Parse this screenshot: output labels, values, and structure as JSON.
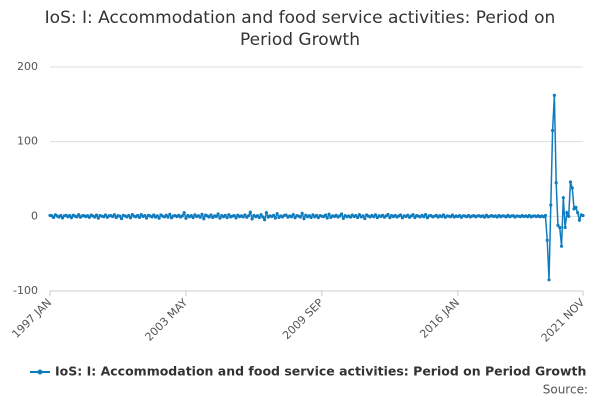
{
  "chart_data": {
    "type": "line",
    "title": "IoS: I: Accommodation and food service activities: Period on Period Growth",
    "source": "Source:",
    "categories": [
      "1997 JAN",
      null,
      null,
      null,
      null,
      null,
      null,
      null,
      null,
      null,
      null,
      null,
      null,
      null,
      null,
      null,
      null,
      null,
      null,
      null,
      null,
      null,
      null,
      null,
      null,
      null,
      null,
      null,
      null,
      null,
      null,
      null,
      null,
      null,
      null,
      null,
      null,
      null,
      null,
      null,
      null,
      null,
      null,
      null,
      null,
      null,
      null,
      null,
      null,
      null,
      null,
      null,
      null,
      null,
      null,
      null,
      null,
      null,
      null,
      null,
      null,
      null,
      null,
      null,
      null,
      null,
      null,
      null,
      null,
      null,
      null,
      null,
      null,
      null,
      null,
      null,
      "2003 MAY",
      null,
      null,
      null,
      null,
      null,
      null,
      null,
      null,
      null,
      null,
      null,
      null,
      null,
      null,
      null,
      null,
      null,
      null,
      null,
      null,
      null,
      null,
      null,
      null,
      null,
      null,
      null,
      null,
      null,
      null,
      null,
      null,
      null,
      null,
      null,
      null,
      null,
      null,
      null,
      null,
      null,
      null,
      null,
      null,
      null,
      null,
      null,
      null,
      null,
      null,
      null,
      null,
      null,
      null,
      null,
      null,
      null,
      null,
      null,
      null,
      null,
      null,
      null,
      null,
      null,
      null,
      null,
      null,
      null,
      null,
      null,
      null,
      null,
      null,
      null,
      "2009 SEP",
      null,
      null,
      null,
      null,
      null,
      null,
      null,
      null,
      null,
      null,
      null,
      null,
      null,
      null,
      null,
      null,
      null,
      null,
      null,
      null,
      null,
      null,
      null,
      null,
      null,
      null,
      null,
      null,
      null,
      null,
      null,
      null,
      null,
      null,
      null,
      null,
      null,
      null,
      null,
      null,
      null,
      null,
      null,
      null,
      null,
      null,
      null,
      null,
      null,
      null,
      null,
      null,
      null,
      null,
      null,
      null,
      null,
      null,
      null,
      null,
      null,
      null,
      null,
      null,
      null,
      null,
      null,
      null,
      null,
      null,
      null,
      null,
      null,
      null,
      null,
      "2016 JAN",
      null,
      null,
      null,
      null,
      null,
      null,
      null,
      null,
      null,
      null,
      null,
      null,
      null,
      null,
      null,
      null,
      null,
      null,
      null,
      null,
      null,
      null,
      null,
      null,
      null,
      null,
      null,
      null,
      null,
      null,
      null,
      null,
      null,
      null,
      null,
      null,
      null,
      null,
      null,
      null,
      null,
      null,
      null,
      null,
      null,
      null,
      null,
      null,
      null,
      null,
      null,
      null,
      null,
      null,
      null,
      null,
      null,
      null,
      null,
      null,
      null,
      null,
      null,
      null,
      null,
      null,
      null,
      null,
      null,
      "2021 NOV"
    ],
    "series": [
      {
        "name": "IoS: I: Accommodation and food service activities: Period on Period Growth",
        "color": "#0f7cbf",
        "values": [
          1.2,
          0.8,
          -1.5,
          2.0,
          0.5,
          -0.9,
          1.1,
          -2.1,
          0.7,
          1.4,
          -0.6,
          0.9,
          -1.8,
          1.5,
          0.3,
          -0.7,
          2.2,
          -1.1,
          0.6,
          1.0,
          -0.4,
          0.8,
          -1.3,
          1.7,
          0.4,
          -0.9,
          1.6,
          -2.4,
          1.0,
          0.2,
          -0.5,
          1.9,
          -1.2,
          0.6,
          0.9,
          -0.3,
          2.1,
          -1.6,
          0.8,
          0.3,
          -3.0,
          1.4,
          0.5,
          -0.8,
          1.2,
          -1.9,
          2.4,
          0.1,
          -0.6,
          1.1,
          -1.4,
          2.3,
          -0.2,
          0.9,
          -2.2,
          1.3,
          0.4,
          -0.7,
          1.8,
          -1.0,
          0.7,
          -2.5,
          1.9,
          0.2,
          -0.8,
          1.5,
          -1.1,
          2.6,
          -1.9,
          0.5,
          1.0,
          -0.4,
          1.3,
          -0.9,
          0.6,
          4.8,
          -2.6,
          1.1,
          -0.5,
          0.9,
          -1.7,
          2.0,
          -0.3,
          0.8,
          -1.2,
          2.7,
          -3.2,
          1.6,
          0.4,
          -0.9,
          1.8,
          -1.5,
          0.6,
          -0.2,
          3.1,
          -2.4,
          0.9,
          -0.6,
          1.4,
          -1.8,
          2.2,
          -0.7,
          0.3,
          1.0,
          -2.1,
          1.5,
          -0.4,
          0.6,
          -0.8,
          1.9,
          -1.3,
          0.7,
          5.5,
          -3.4,
          1.2,
          -0.5,
          0.8,
          -1.6,
          2.1,
          -0.9,
          -4.5,
          4.8,
          -1.0,
          0.6,
          -0.3,
          1.4,
          -2.2,
          3.5,
          -1.4,
          0.5,
          -0.8,
          1.2,
          1.7,
          -1.1,
          0.4,
          -0.6,
          2.4,
          -1.9,
          1.0,
          0.3,
          -0.9,
          4.0,
          -3.1,
          1.5,
          -0.5,
          0.8,
          -1.6,
          2.0,
          -0.7,
          1.1,
          -1.8,
          0.9,
          0.2,
          -0.4,
          1.6,
          -2.3,
          2.8,
          -1.4,
          0.7,
          -0.2,
          1.3,
          -0.9,
          0.5,
          3.2,
          -2.7,
          1.0,
          -0.6,
          0.4,
          -1.0,
          1.7,
          -0.3,
          0.9,
          -1.5,
          2.2,
          -0.8,
          0.6,
          -2.9,
          1.9,
          0.3,
          -0.7,
          1.1,
          -0.5,
          2.0,
          -1.7,
          0.8,
          -0.2,
          1.4,
          -1.1,
          0.6,
          2.5,
          -1.8,
          0.9,
          -0.4,
          1.2,
          -0.9,
          0.5,
          1.8,
          -2.0,
          0.7,
          -0.3,
          1.5,
          -1.2,
          0.4,
          2.1,
          -1.6,
          0.9,
          0.3,
          -0.8,
          1.4,
          -0.5,
          2.3,
          -1.9,
          0.6,
          1.0,
          -0.7,
          0.2,
          1.3,
          -1.0,
          0.8,
          -0.4,
          1.9,
          -1.3,
          0.5,
          0.2,
          -0.6,
          1.6,
          -0.9,
          0.4,
          -0.3,
          1.0,
          -1.2,
          0.7,
          0.4,
          -0.5,
          1.2,
          -0.8,
          0.3,
          0.9,
          -0.6,
          0.5,
          0.8,
          -0.4,
          0.6,
          -1.1,
          1.5,
          -0.7,
          0.2,
          0.9,
          -0.3,
          0.6,
          -0.9,
          1.1,
          -0.6,
          0.7,
          0.3,
          -0.8,
          1.3,
          -0.5,
          0.4,
          0.8,
          -1.0,
          0.5,
          0.2,
          -0.4,
          0.9,
          -0.3,
          0.6,
          -0.5,
          1.1,
          -0.7,
          0.3,
          0.5,
          -0.2,
          0.8,
          -0.6,
          0.4,
          -0.5,
          1.2,
          -32,
          -85,
          15,
          115,
          162,
          45,
          -12,
          -15,
          -40,
          25,
          -15,
          5,
          0,
          46,
          38,
          10,
          12,
          5,
          -5,
          2,
          1
        ]
      }
    ],
    "ylim": [
      -100,
      200
    ],
    "yticks": [
      -100,
      0,
      100,
      200
    ],
    "grid": true
  }
}
